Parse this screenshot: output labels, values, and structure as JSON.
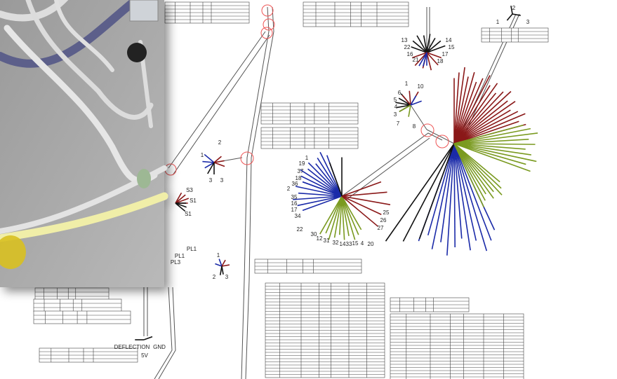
{
  "connectors": [
    {
      "pins": [
        "1",
        "19",
        "37",
        "18",
        "36",
        "2",
        "35",
        "16",
        "17",
        "34",
        "22",
        "30",
        "12",
        "31",
        "32",
        "14",
        "33",
        "15",
        "4",
        "20",
        "25",
        "26",
        "27"
      ]
    },
    {
      "pins": [
        "13",
        "14",
        "22",
        "15",
        "16",
        "17",
        "21",
        "18"
      ]
    },
    {
      "pins": [
        "1",
        "10",
        "6",
        "5",
        "4",
        "3",
        "7",
        "8"
      ]
    },
    {
      "pins": [
        "1",
        "2",
        "3",
        "3"
      ]
    },
    {
      "pins": [
        "S3",
        "S1",
        "S1",
        "PL1",
        "PL1",
        "PL3"
      ]
    },
    {
      "pins": [
        "1",
        "2",
        "3"
      ]
    },
    {
      "pins": [
        "1",
        "2",
        "3"
      ]
    }
  ],
  "annotations": {
    "deflection": "DEFLECTION",
    "gnd": "GND",
    "supply": "5V"
  }
}
